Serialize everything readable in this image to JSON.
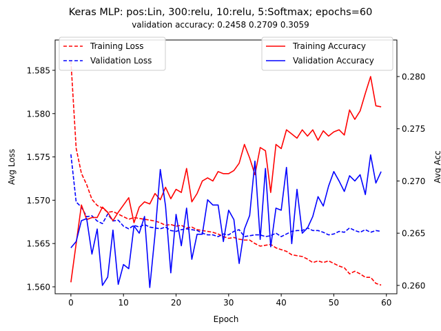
{
  "chart_data": {
    "type": "line",
    "title": "Keras MLP: pos:Lin, 300:relu, 10:relu, 5:Softmax; epochs=60",
    "subtitle": "validation accuracy:  0.2458  0.2709  0.3059",
    "xlabel": "Epoch",
    "ylabel_left": "Avg Loss",
    "ylabel_right": "Avg Acc",
    "xlim": [
      -3,
      62
    ],
    "ylim_left": [
      1.5592,
      1.5885
    ],
    "ylim_right": [
      0.2592,
      0.2835
    ],
    "xticks": [
      0,
      10,
      20,
      30,
      40,
      50,
      60
    ],
    "yticks_left": [
      1.56,
      1.565,
      1.57,
      1.575,
      1.58,
      1.585
    ],
    "yticks_right": [
      0.26,
      0.265,
      0.27,
      0.275,
      0.28
    ],
    "xtick_labels": [
      "0",
      "10",
      "20",
      "30",
      "40",
      "50",
      "60"
    ],
    "ytick_labels_left": [
      "1.560",
      "1.565",
      "1.570",
      "1.575",
      "1.580",
      "1.585"
    ],
    "ytick_labels_right": [
      "0.260",
      "0.265",
      "0.270",
      "0.275",
      "0.280"
    ],
    "grid": false,
    "x": [
      0,
      1,
      2,
      3,
      4,
      5,
      6,
      7,
      8,
      9,
      10,
      11,
      12,
      13,
      14,
      15,
      16,
      17,
      18,
      19,
      20,
      21,
      22,
      23,
      24,
      25,
      26,
      27,
      28,
      29,
      30,
      31,
      32,
      33,
      34,
      35,
      36,
      37,
      38,
      39,
      40,
      41,
      42,
      43,
      44,
      45,
      46,
      47,
      48,
      49,
      50,
      51,
      52,
      53,
      54,
      55,
      56,
      57,
      58,
      59
    ],
    "series": [
      {
        "name": "Training Loss",
        "axis": "left",
        "color": "#ff0000",
        "style": "dashed",
        "values": [
          1.5861,
          1.576,
          1.5731,
          1.5718,
          1.5701,
          1.5694,
          1.5691,
          1.5686,
          1.5687,
          1.5684,
          1.5681,
          1.5678,
          1.568,
          1.5679,
          1.5678,
          1.5677,
          1.5676,
          1.5674,
          1.5671,
          1.5672,
          1.567,
          1.5671,
          1.5668,
          1.5669,
          1.5666,
          1.5665,
          1.5664,
          1.5663,
          1.5661,
          1.5658,
          1.5656,
          1.5657,
          1.5655,
          1.5654,
          1.5654,
          1.565,
          1.5647,
          1.5648,
          1.5649,
          1.5645,
          1.5643,
          1.5641,
          1.5637,
          1.5636,
          1.5635,
          1.5632,
          1.5628,
          1.563,
          1.5628,
          1.563,
          1.5627,
          1.5624,
          1.5622,
          1.5615,
          1.5618,
          1.5615,
          1.5611,
          1.5611,
          1.5604,
          1.5602
        ]
      },
      {
        "name": "Validation Loss",
        "axis": "left",
        "color": "#0000ff",
        "style": "dashed",
        "values": [
          1.5753,
          1.5698,
          1.5692,
          1.5681,
          1.5682,
          1.5676,
          1.5673,
          1.5684,
          1.5676,
          1.5677,
          1.567,
          1.5667,
          1.5671,
          1.5669,
          1.5672,
          1.5669,
          1.5668,
          1.5667,
          1.5669,
          1.5665,
          1.5664,
          1.5666,
          1.5667,
          1.5666,
          1.5665,
          1.5662,
          1.566,
          1.566,
          1.5658,
          1.5661,
          1.566,
          1.5664,
          1.5666,
          1.5658,
          1.5659,
          1.566,
          1.566,
          1.5658,
          1.5659,
          1.5662,
          1.5658,
          1.5661,
          1.5664,
          1.5665,
          1.5665,
          1.5668,
          1.5665,
          1.5665,
          1.5663,
          1.566,
          1.5661,
          1.5664,
          1.5663,
          1.5668,
          1.5665,
          1.5663,
          1.5666,
          1.5663,
          1.5665,
          1.5664
        ]
      },
      {
        "name": "Training Accuracy",
        "axis": "right",
        "color": "#ff0000",
        "style": "solid",
        "values": [
          0.2603,
          0.264,
          0.2677,
          0.2663,
          0.2665,
          0.2665,
          0.2675,
          0.267,
          0.2662,
          0.267,
          0.2677,
          0.2684,
          0.266,
          0.2675,
          0.268,
          0.2678,
          0.2688,
          0.2682,
          0.2694,
          0.2683,
          0.2692,
          0.2689,
          0.2712,
          0.268,
          0.2688,
          0.27,
          0.2703,
          0.27,
          0.2709,
          0.2707,
          0.2707,
          0.271,
          0.2717,
          0.2735,
          0.2722,
          0.2706,
          0.2732,
          0.2729,
          0.2689,
          0.2735,
          0.2731,
          0.2749,
          0.2745,
          0.2741,
          0.2749,
          0.2743,
          0.2749,
          0.2739,
          0.2748,
          0.2743,
          0.2747,
          0.2749,
          0.2744,
          0.2768,
          0.2759,
          0.2767,
          0.2784,
          0.28,
          0.2772,
          0.2771
        ]
      },
      {
        "name": "Validation Accuracy",
        "axis": "right",
        "color": "#0000ff",
        "style": "solid",
        "values": [
          0.2636,
          0.2642,
          0.2662,
          0.2664,
          0.263,
          0.2654,
          0.26,
          0.2608,
          0.2653,
          0.2601,
          0.262,
          0.2616,
          0.2657,
          0.265,
          0.2666,
          0.2598,
          0.2649,
          0.2711,
          0.2676,
          0.2612,
          0.2668,
          0.2638,
          0.2674,
          0.2625,
          0.2649,
          0.2649,
          0.2682,
          0.2677,
          0.2677,
          0.2642,
          0.2672,
          0.2663,
          0.2621,
          0.2654,
          0.2667,
          0.2719,
          0.2644,
          0.2712,
          0.2637,
          0.2674,
          0.2672,
          0.2713,
          0.264,
          0.2692,
          0.265,
          0.2655,
          0.2666,
          0.2685,
          0.2676,
          0.2695,
          0.2709,
          0.27,
          0.269,
          0.2705,
          0.27,
          0.2706,
          0.2687,
          0.2725,
          0.2698,
          0.2709
        ]
      }
    ],
    "legend_left": {
      "placement": "upper-left",
      "entries": [
        "Training Loss",
        "Validation Loss"
      ]
    },
    "legend_right": {
      "placement": "upper-right",
      "entries": [
        "Training Accuracy",
        "Validation Accuracy"
      ]
    }
  }
}
